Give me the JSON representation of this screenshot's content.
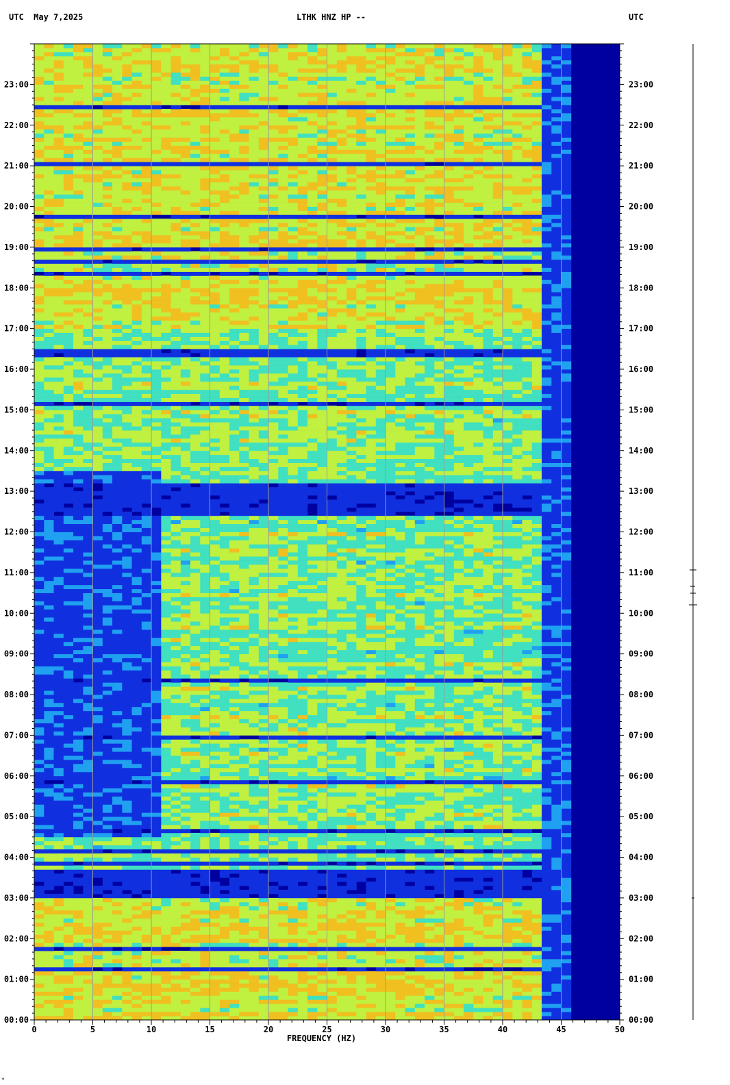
{
  "header": {
    "left": "UTC  May 7,2025",
    "center": "LTHK HNZ HP --",
    "right": "UTC"
  },
  "colors": {
    "background_low": "#0000a0",
    "low": "#1030e0",
    "mid_low": "#20a0f0",
    "mid": "#40e0c0",
    "mid_high": "#c0f040",
    "high": "#f0c020",
    "peak": "#e02010"
  },
  "chart_data": {
    "type": "heatmap",
    "title": "",
    "xlabel": "FREQUENCY (HZ)",
    "ylabel": "",
    "xlim": [
      0,
      50
    ],
    "ylim_hours": [
      0,
      24
    ],
    "x_ticks": [
      "0",
      "5",
      "10",
      "15",
      "20",
      "25",
      "30",
      "35",
      "40",
      "45",
      "50"
    ],
    "y_ticks": [
      "00:00",
      "01:00",
      "02:00",
      "03:00",
      "04:00",
      "05:00",
      "06:00",
      "07:00",
      "08:00",
      "09:00",
      "10:00",
      "11:00",
      "12:00",
      "13:00",
      "14:00",
      "15:00",
      "16:00",
      "17:00",
      "18:00",
      "19:00",
      "20:00",
      "21:00",
      "22:00",
      "23:00"
    ],
    "grid": true,
    "rolloff_hz": 44.5,
    "quiet_bands": [
      {
        "start_h": 3.0,
        "end_h": 3.7
      },
      {
        "start_h": 16.3,
        "end_h": 16.5
      },
      {
        "start_h": 12.4,
        "end_h": 13.2
      }
    ],
    "low_freq_quiet_hours": [
      4.5,
      13.5
    ]
  }
}
